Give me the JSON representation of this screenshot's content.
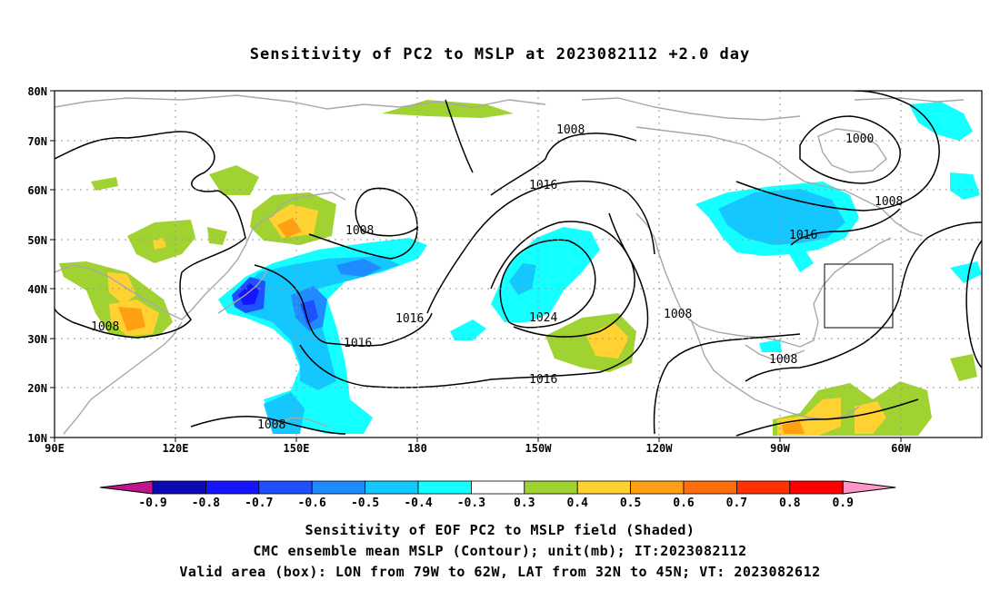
{
  "title": "Sensitivity of PC2 to MSLP at 2023082112 +2.0 day",
  "map": {
    "lat_labels": [
      "80N",
      "70N",
      "60N",
      "50N",
      "40N",
      "30N",
      "20N",
      "10N"
    ],
    "lon_labels": [
      "90E",
      "120E",
      "150E",
      "180",
      "150W",
      "120W",
      "90W",
      "60W"
    ],
    "contour_labels": [
      "1008",
      "1000",
      "1008",
      "1016",
      "1008",
      "1016",
      "1024",
      "1016",
      "1016",
      "1008",
      "1016",
      "1008",
      "1008",
      "1008"
    ],
    "colors": {
      "coast": "#a8a8a8",
      "contour": "#000000",
      "grid": "#999999"
    }
  },
  "colorbar": {
    "labels": [
      "-0.9",
      "-0.8",
      "-0.7",
      "-0.6",
      "-0.5",
      "-0.4",
      "-0.3",
      "0.3",
      "0.4",
      "0.5",
      "0.6",
      "0.7",
      "0.8",
      "0.9"
    ],
    "colors": [
      "#c0148c",
      "#0a0ab4",
      "#1414ff",
      "#1e50ff",
      "#1e8cff",
      "#14c8ff",
      "#14ffff",
      "#ffffff",
      "#a0d232",
      "#ffd232",
      "#ffa014",
      "#ff6e0a",
      "#ff3200",
      "#ff0000",
      "#ff96c8"
    ]
  },
  "footer": {
    "line1": "Sensitivity of EOF PC2 to MSLP field (Shaded)",
    "line2": "CMC ensemble mean MSLP (Contour); unit(mb); IT:2023082112",
    "line3": "Valid area (box): LON from 79W to 62W, LAT from 32N to 45N; VT: 2023082612"
  }
}
